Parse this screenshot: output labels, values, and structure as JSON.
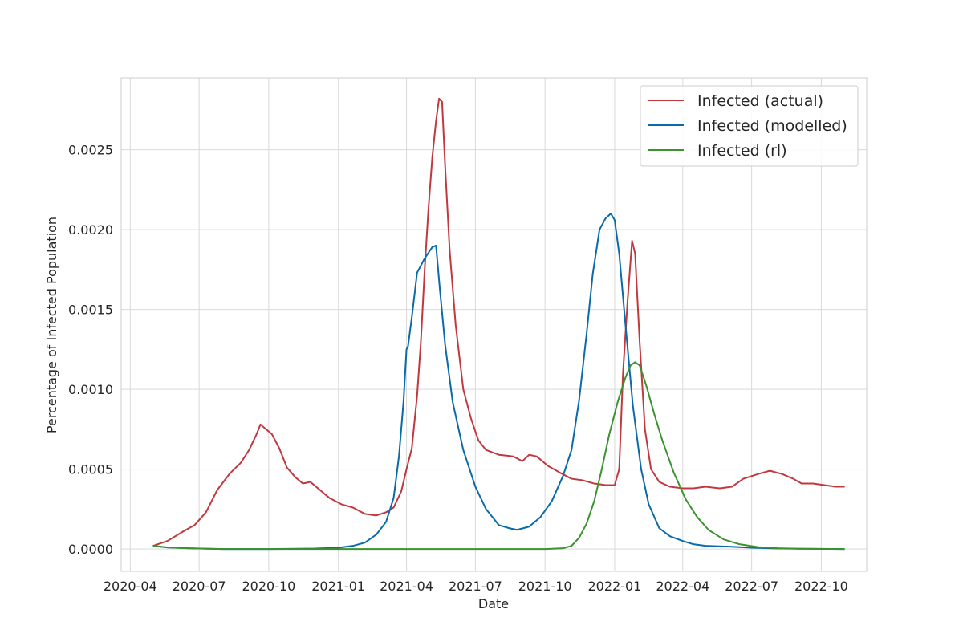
{
  "chart_data": {
    "type": "line",
    "xlabel": "Date",
    "ylabel": "Percentage of Infected Population",
    "x_ticks": [
      "2020-04",
      "2020-07",
      "2020-10",
      "2021-01",
      "2021-04",
      "2021-07",
      "2021-10",
      "2022-01",
      "2022-04",
      "2022-07",
      "2022-10"
    ],
    "y_ticks": [
      "0.0000",
      "0.0005",
      "0.0010",
      "0.0015",
      "0.0020",
      "0.0025"
    ],
    "xlim": [
      "2020-03-20",
      "2022-11-30"
    ],
    "ylim": [
      -0.00014,
      0.00295
    ],
    "grid": true,
    "legend_position": "top-right",
    "series": [
      {
        "name": "Infected (actual)",
        "color": "#c0393f",
        "points": [
          [
            "2020-05-01",
            2e-05
          ],
          [
            "2020-05-20",
            5e-05
          ],
          [
            "2020-06-10",
            0.00011
          ],
          [
            "2020-06-25",
            0.00015
          ],
          [
            "2020-07-10",
            0.00023
          ],
          [
            "2020-07-25",
            0.00037
          ],
          [
            "2020-08-10",
            0.00047
          ],
          [
            "2020-08-25",
            0.00054
          ],
          [
            "2020-09-05",
            0.00062
          ],
          [
            "2020-09-15",
            0.00072
          ],
          [
            "2020-09-20",
            0.00078
          ],
          [
            "2020-09-25",
            0.00076
          ],
          [
            "2020-10-05",
            0.00072
          ],
          [
            "2020-10-15",
            0.00063
          ],
          [
            "2020-10-25",
            0.00051
          ],
          [
            "2020-11-05",
            0.00045
          ],
          [
            "2020-11-15",
            0.00041
          ],
          [
            "2020-11-25",
            0.00042
          ],
          [
            "2020-12-05",
            0.00038
          ],
          [
            "2020-12-20",
            0.00032
          ],
          [
            "2021-01-05",
            0.00028
          ],
          [
            "2021-01-20",
            0.00026
          ],
          [
            "2021-02-05",
            0.00022
          ],
          [
            "2021-02-20",
            0.00021
          ],
          [
            "2021-03-05",
            0.00023
          ],
          [
            "2021-03-15",
            0.00026
          ],
          [
            "2021-03-25",
            0.00036
          ],
          [
            "2021-04-01",
            0.0005
          ],
          [
            "2021-04-08",
            0.00063
          ],
          [
            "2021-04-15",
            0.00096
          ],
          [
            "2021-04-20",
            0.0013
          ],
          [
            "2021-04-25",
            0.00175
          ],
          [
            "2021-04-30",
            0.00213
          ],
          [
            "2021-05-05",
            0.00245
          ],
          [
            "2021-05-10",
            0.00268
          ],
          [
            "2021-05-14",
            0.00282
          ],
          [
            "2021-05-18",
            0.0028
          ],
          [
            "2021-05-22",
            0.0024
          ],
          [
            "2021-05-28",
            0.00187
          ],
          [
            "2021-06-05",
            0.0014
          ],
          [
            "2021-06-15",
            0.001
          ],
          [
            "2021-06-25",
            0.00082
          ],
          [
            "2021-07-05",
            0.00068
          ],
          [
            "2021-07-15",
            0.00062
          ],
          [
            "2021-08-01",
            0.00059
          ],
          [
            "2021-08-20",
            0.00058
          ],
          [
            "2021-09-01",
            0.00055
          ],
          [
            "2021-09-10",
            0.00059
          ],
          [
            "2021-09-20",
            0.00058
          ],
          [
            "2021-10-05",
            0.00052
          ],
          [
            "2021-10-20",
            0.00048
          ],
          [
            "2021-11-05",
            0.00044
          ],
          [
            "2021-11-20",
            0.00043
          ],
          [
            "2021-12-05",
            0.00041
          ],
          [
            "2021-12-20",
            0.0004
          ],
          [
            "2022-01-01",
            0.0004
          ],
          [
            "2022-01-07",
            0.0005
          ],
          [
            "2022-01-12",
            0.0011
          ],
          [
            "2022-01-18",
            0.00155
          ],
          [
            "2022-01-24",
            0.00193
          ],
          [
            "2022-01-28",
            0.00185
          ],
          [
            "2022-02-03",
            0.0013
          ],
          [
            "2022-02-10",
            0.00075
          ],
          [
            "2022-02-18",
            0.0005
          ],
          [
            "2022-03-01",
            0.00042
          ],
          [
            "2022-03-15",
            0.00039
          ],
          [
            "2022-04-01",
            0.00038
          ],
          [
            "2022-04-15",
            0.00038
          ],
          [
            "2022-05-01",
            0.00039
          ],
          [
            "2022-05-20",
            0.00038
          ],
          [
            "2022-06-05",
            0.00039
          ],
          [
            "2022-06-20",
            0.00044
          ],
          [
            "2022-07-10",
            0.00047
          ],
          [
            "2022-07-25",
            0.00049
          ],
          [
            "2022-08-10",
            0.00047
          ],
          [
            "2022-08-25",
            0.00044
          ],
          [
            "2022-09-05",
            0.00041
          ],
          [
            "2022-09-20",
            0.00041
          ],
          [
            "2022-10-05",
            0.0004
          ],
          [
            "2022-10-20",
            0.00039
          ],
          [
            "2022-11-01",
            0.00039
          ]
        ]
      },
      {
        "name": "Infected (modelled)",
        "color": "#0b6aa8",
        "points": [
          [
            "2020-05-01",
            2e-05
          ],
          [
            "2020-05-20",
            1e-05
          ],
          [
            "2020-06-15",
            5e-06
          ],
          [
            "2020-08-01",
            0.0
          ],
          [
            "2020-10-01",
            0.0
          ],
          [
            "2020-12-01",
            3e-06
          ],
          [
            "2021-01-01",
            8e-06
          ],
          [
            "2021-01-20",
            2e-05
          ],
          [
            "2021-02-05",
            4e-05
          ],
          [
            "2021-02-20",
            9e-05
          ],
          [
            "2021-03-05",
            0.00017
          ],
          [
            "2021-03-15",
            0.00032
          ],
          [
            "2021-03-22",
            0.00058
          ],
          [
            "2021-03-28",
            0.00092
          ],
          [
            "2021-04-01",
            0.00125
          ],
          [
            "2021-04-03",
            0.00127
          ],
          [
            "2021-04-08",
            0.00145
          ],
          [
            "2021-04-15",
            0.00173
          ],
          [
            "2021-04-25",
            0.00182
          ],
          [
            "2021-05-05",
            0.00189
          ],
          [
            "2021-05-10",
            0.0019
          ],
          [
            "2021-05-15",
            0.00163
          ],
          [
            "2021-05-22",
            0.00128
          ],
          [
            "2021-06-01",
            0.00092
          ],
          [
            "2021-06-15",
            0.00062
          ],
          [
            "2021-07-01",
            0.00039
          ],
          [
            "2021-07-15",
            0.00025
          ],
          [
            "2021-08-01",
            0.00015
          ],
          [
            "2021-08-15",
            0.00013
          ],
          [
            "2021-08-25",
            0.00012
          ],
          [
            "2021-09-10",
            0.00014
          ],
          [
            "2021-09-25",
            0.0002
          ],
          [
            "2021-10-10",
            0.0003
          ],
          [
            "2021-10-25",
            0.00046
          ],
          [
            "2021-11-05",
            0.00062
          ],
          [
            "2021-11-15",
            0.00093
          ],
          [
            "2021-11-25",
            0.00135
          ],
          [
            "2021-12-03",
            0.00172
          ],
          [
            "2021-12-12",
            0.002
          ],
          [
            "2021-12-20",
            0.00207
          ],
          [
            "2021-12-27",
            0.0021
          ],
          [
            "2022-01-01",
            0.00206
          ],
          [
            "2022-01-07",
            0.00185
          ],
          [
            "2022-01-15",
            0.00142
          ],
          [
            "2022-01-25",
            0.0009
          ],
          [
            "2022-02-05",
            0.0005
          ],
          [
            "2022-02-15",
            0.00028
          ],
          [
            "2022-03-01",
            0.00013
          ],
          [
            "2022-03-15",
            8e-05
          ],
          [
            "2022-04-01",
            5e-05
          ],
          [
            "2022-04-15",
            3e-05
          ],
          [
            "2022-05-01",
            2e-05
          ],
          [
            "2022-06-01",
            1.5e-05
          ],
          [
            "2022-07-01",
            8e-06
          ],
          [
            "2022-08-01",
            4e-06
          ],
          [
            "2022-09-01",
            2e-06
          ],
          [
            "2022-11-01",
            0.0
          ]
        ]
      },
      {
        "name": "Infected (rl)",
        "color": "#3b922f",
        "points": [
          [
            "2020-05-01",
            2e-05
          ],
          [
            "2020-05-20",
            1e-05
          ],
          [
            "2020-06-15",
            5e-06
          ],
          [
            "2020-08-01",
            0.0
          ],
          [
            "2021-10-01",
            0.0
          ],
          [
            "2021-10-25",
            5e-06
          ],
          [
            "2021-11-05",
            2e-05
          ],
          [
            "2021-11-15",
            7e-05
          ],
          [
            "2021-11-25",
            0.00016
          ],
          [
            "2021-12-05",
            0.0003
          ],
          [
            "2021-12-15",
            0.0005
          ],
          [
            "2021-12-25",
            0.00072
          ],
          [
            "2022-01-05",
            0.00092
          ],
          [
            "2022-01-15",
            0.00107
          ],
          [
            "2022-01-22",
            0.00115
          ],
          [
            "2022-01-28",
            0.00117
          ],
          [
            "2022-02-03",
            0.00115
          ],
          [
            "2022-02-12",
            0.00102
          ],
          [
            "2022-02-22",
            0.00085
          ],
          [
            "2022-03-05",
            0.00068
          ],
          [
            "2022-03-20",
            0.00048
          ],
          [
            "2022-04-05",
            0.00031
          ],
          [
            "2022-04-20",
            0.0002
          ],
          [
            "2022-05-05",
            0.00012
          ],
          [
            "2022-05-25",
            6e-05
          ],
          [
            "2022-06-15",
            3e-05
          ],
          [
            "2022-07-10",
            1.2e-05
          ],
          [
            "2022-08-05",
            5e-06
          ],
          [
            "2022-09-01",
            2e-06
          ],
          [
            "2022-11-01",
            0.0
          ]
        ]
      }
    ]
  }
}
